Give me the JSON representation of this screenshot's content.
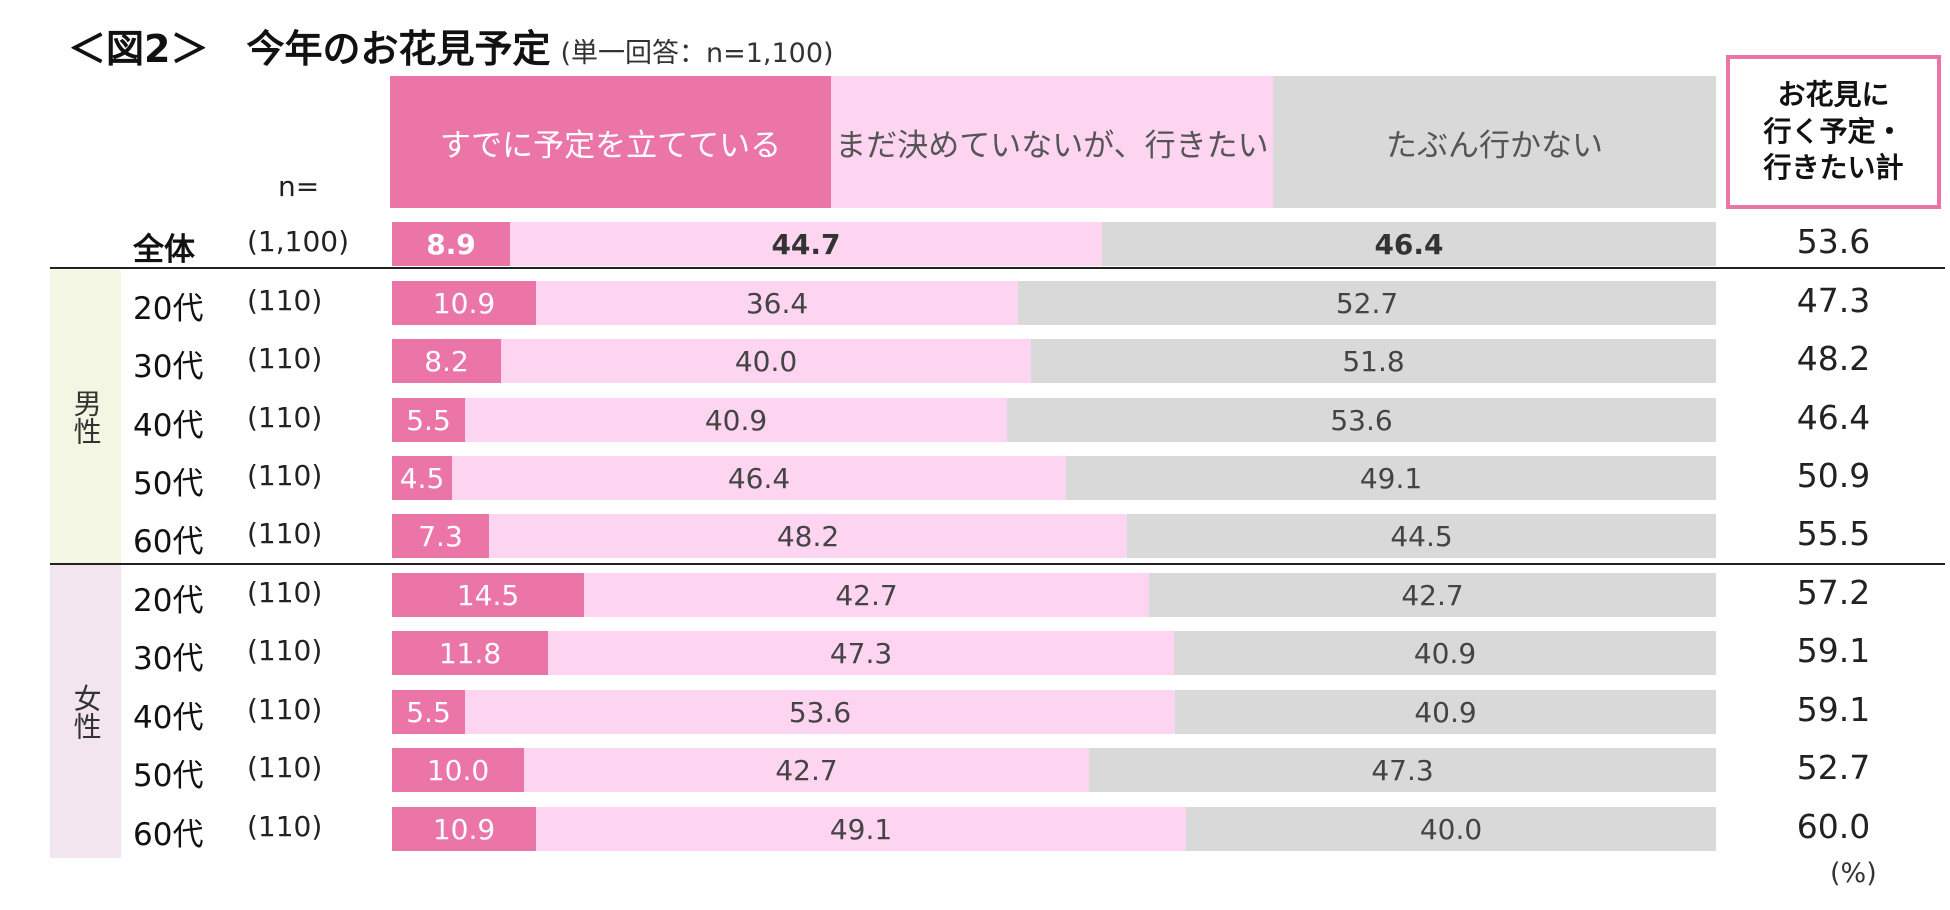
{
  "title": {
    "main": "＜図2＞　今年のお花見予定",
    "sub": "(単一回答：n=1,100)"
  },
  "n_header": "n=",
  "total_header": "お花見に\n行く予定・\n行きたい計",
  "unit_label": "(%)",
  "groups": {
    "male": "男性",
    "female": "女性"
  },
  "colors": {
    "planned": "#EC75A8",
    "want_to_go": "#FDD5F0",
    "not_going": "#D9D9D9",
    "total_border": "#EC75A8"
  },
  "chart_data": {
    "type": "bar",
    "orientation": "horizontal-stacked-100",
    "series": [
      {
        "name": "すでに予定を立てている",
        "values": [
          8.9,
          10.9,
          8.2,
          5.5,
          4.5,
          7.3,
          14.5,
          11.8,
          5.5,
          10.0,
          10.9
        ]
      },
      {
        "name": "まだ決めていないが、行きたい",
        "values": [
          44.7,
          36.4,
          40.0,
          40.9,
          46.4,
          48.2,
          42.7,
          47.3,
          53.6,
          42.7,
          49.1
        ]
      },
      {
        "name": "たぶん行かない",
        "values": [
          46.4,
          52.7,
          51.8,
          53.6,
          49.1,
          44.5,
          42.7,
          40.9,
          40.9,
          47.3,
          40.0
        ]
      }
    ],
    "rows": [
      {
        "label": "全体",
        "n": "(1,100)",
        "group": "",
        "total": "53.6",
        "labels": [
          "8.9",
          "44.7",
          "46.4"
        ]
      },
      {
        "label": "20代",
        "n": "(110)",
        "group": "male",
        "total": "47.3",
        "labels": [
          "10.9",
          "36.4",
          "52.7"
        ]
      },
      {
        "label": "30代",
        "n": "(110)",
        "group": "male",
        "total": "48.2",
        "labels": [
          "8.2",
          "40.0",
          "51.8"
        ]
      },
      {
        "label": "40代",
        "n": "(110)",
        "group": "male",
        "total": "46.4",
        "labels": [
          "5.5",
          "40.9",
          "53.6"
        ]
      },
      {
        "label": "50代",
        "n": "(110)",
        "group": "male",
        "total": "50.9",
        "labels": [
          "4.5",
          "46.4",
          "49.1"
        ]
      },
      {
        "label": "60代",
        "n": "(110)",
        "group": "male",
        "total": "55.5",
        "labels": [
          "7.3",
          "48.2",
          "44.5"
        ]
      },
      {
        "label": "20代",
        "n": "(110)",
        "group": "female",
        "total": "57.2",
        "labels": [
          "14.5",
          "42.7",
          "42.7"
        ]
      },
      {
        "label": "30代",
        "n": "(110)",
        "group": "female",
        "total": "59.1",
        "labels": [
          "11.8",
          "47.3",
          "40.9"
        ]
      },
      {
        "label": "40代",
        "n": "(110)",
        "group": "female",
        "total": "59.1",
        "labels": [
          "5.5",
          "53.6",
          "40.9"
        ]
      },
      {
        "label": "50代",
        "n": "(110)",
        "group": "female",
        "total": "52.7",
        "labels": [
          "10.0",
          "42.7",
          "47.3"
        ]
      },
      {
        "label": "60代",
        "n": "(110)",
        "group": "female",
        "total": "60.0",
        "labels": [
          "10.9",
          "49.1",
          "40.0"
        ]
      }
    ],
    "xlim": [
      0,
      100
    ]
  }
}
